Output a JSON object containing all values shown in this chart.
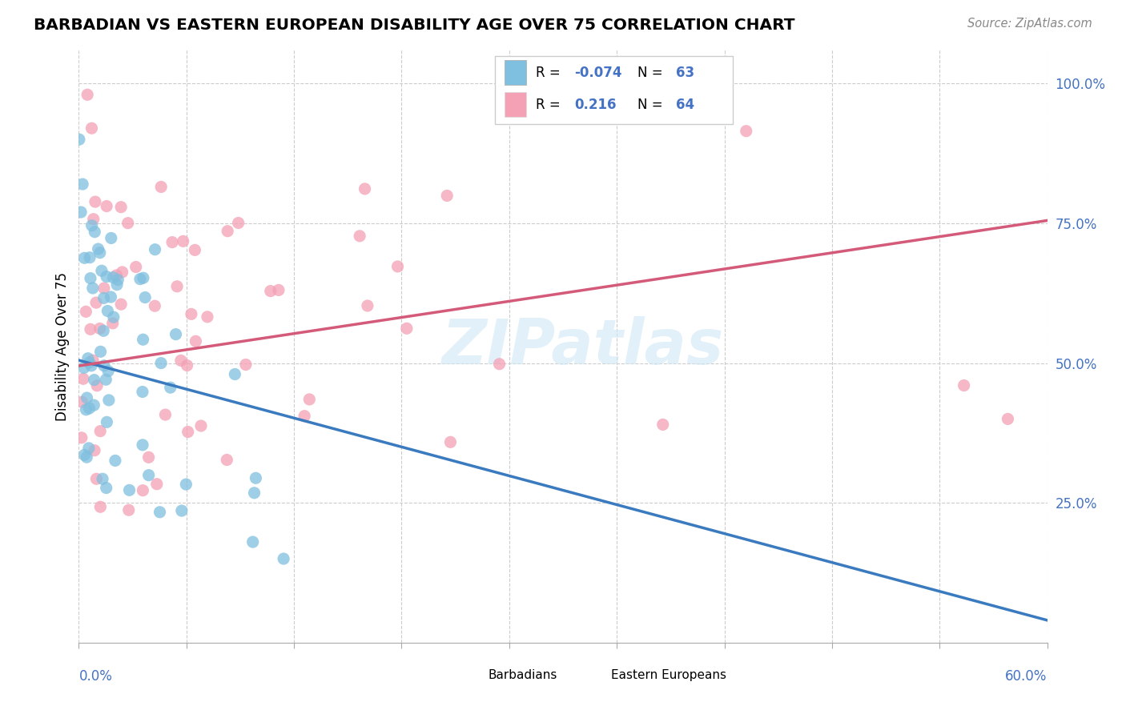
{
  "title": "BARBADIAN VS EASTERN EUROPEAN DISABILITY AGE OVER 75 CORRELATION CHART",
  "source": "Source: ZipAtlas.com",
  "ylabel": "Disability Age Over 75",
  "R_barbadian": -0.074,
  "N_barbadian": 63,
  "R_eastern": 0.216,
  "N_eastern": 64,
  "color_barbadian": "#7fbfdf",
  "color_eastern": "#f4a0b5",
  "color_barb_line": "#3a7abf",
  "color_east_line": "#d45a7a",
  "color_axis_labels": "#4472c4",
  "background_color": "#ffffff",
  "xlim": [
    0.0,
    0.6
  ],
  "ylim": [
    0.0,
    1.06
  ],
  "barb_trend_x0": 0.0,
  "barb_trend_y0": 0.505,
  "barb_trend_x1": 0.6,
  "barb_trend_y1": 0.04,
  "east_trend_x0": 0.0,
  "east_trend_y0": 0.495,
  "east_trend_x1": 0.6,
  "east_trend_y1": 0.755,
  "grid_color": "#cccccc",
  "yticks": [
    0.25,
    0.5,
    0.75,
    1.0
  ],
  "ytick_labels": [
    "25.0%",
    "50.0%",
    "75.0%",
    "100.0%"
  ],
  "watermark_text": "ZIPatlas",
  "watermark_fontsize": 56,
  "watermark_color": "#d0e8f5",
  "watermark_alpha": 0.6
}
